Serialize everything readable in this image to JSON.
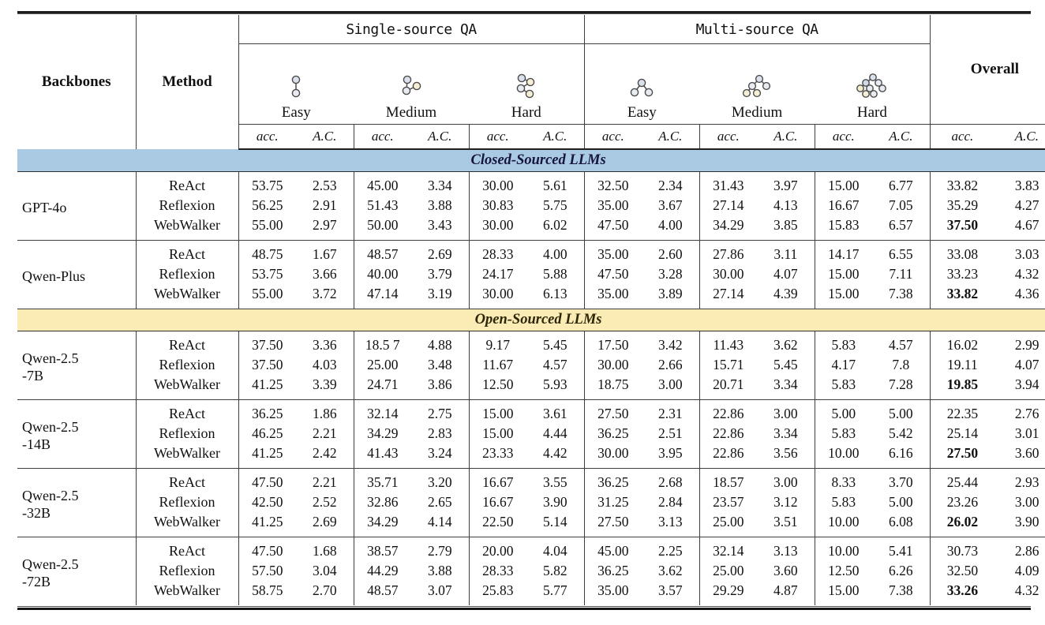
{
  "header": {
    "backbones_label": "Backbones",
    "method_label": "Method",
    "single_source_label": "Single-source QA",
    "multi_source_label": "Multi-source QA",
    "overall_label": "Overall",
    "difficulty_labels": [
      "Easy",
      "Medium",
      "Hard"
    ],
    "acc_label": "acc.",
    "ac_label": "A.C.",
    "icons": [
      "single-easy-chain-2-nodes-icon",
      "single-medium-chain-3-nodes-icon",
      "single-hard-chain-4-nodes-icon",
      "multi-easy-tree-3-nodes-icon",
      "multi-medium-tree-5-nodes-icon",
      "multi-hard-tree-8-nodes-icon"
    ]
  },
  "colors": {
    "closed_banner_bg": "#aac9e2",
    "open_banner_bg": "#faecb4",
    "closed_banner_text": "#15153d",
    "open_banner_text": "#2c2608",
    "rule_dark": "#1e1e1e",
    "rule_mid": "#3e3e3e",
    "node_fill_blue": "#dbe1ec",
    "node_fill_cream": "#f6efd5"
  },
  "sections": [
    {
      "title": "Closed-Sourced LLMs",
      "theme": "closed",
      "groups": [
        {
          "backbone_lines": [
            "GPT-4o"
          ],
          "rows": [
            {
              "method": "ReAct",
              "values": [
                "53.75",
                "2.53",
                "45.00",
                "3.34",
                "30.00",
                "5.61",
                "32.50",
                "2.34",
                "31.43",
                "3.97",
                "15.00",
                "6.77",
                "33.82",
                "3.83"
              ],
              "bold_indices": []
            },
            {
              "method": "Reflexion",
              "values": [
                "56.25",
                "2.91",
                "51.43",
                "3.88",
                "30.83",
                "5.75",
                "35.00",
                "3.67",
                "27.14",
                "4.13",
                "16.67",
                "7.05",
                "35.29",
                "4.27"
              ],
              "bold_indices": []
            },
            {
              "method": "WebWalker",
              "values": [
                "55.00",
                "2.97",
                "50.00",
                "3.43",
                "30.00",
                "6.02",
                "47.50",
                "4.00",
                "34.29",
                "3.85",
                "15.83",
                "6.57",
                "37.50",
                "4.67"
              ],
              "bold_indices": [
                12
              ]
            }
          ]
        },
        {
          "backbone_lines": [
            "Qwen-Plus"
          ],
          "rows": [
            {
              "method": "ReAct",
              "values": [
                "48.75",
                "1.67",
                "48.57",
                "2.69",
                "28.33",
                "4.00",
                "35.00",
                "2.60",
                "27.86",
                "3.11",
                "14.17",
                "6.55",
                "33.08",
                "3.03"
              ],
              "bold_indices": []
            },
            {
              "method": "Reflexion",
              "values": [
                "53.75",
                "3.66",
                "40.00",
                "3.79",
                "24.17",
                "5.88",
                "47.50",
                "3.28",
                "30.00",
                "4.07",
                "15.00",
                "7.11",
                "33.23",
                "4.32"
              ],
              "bold_indices": []
            },
            {
              "method": "WebWalker",
              "values": [
                "55.00",
                "3.72",
                "47.14",
                "3.19",
                "30.00",
                "6.13",
                "35.00",
                "3.89",
                "27.14",
                "4.39",
                "15.00",
                "7.38",
                "33.82",
                "4.36"
              ],
              "bold_indices": [
                12
              ]
            }
          ]
        }
      ]
    },
    {
      "title": "Open-Sourced LLMs",
      "theme": "open",
      "groups": [
        {
          "backbone_lines": [
            "Qwen-2.5",
            "-7B"
          ],
          "rows": [
            {
              "method": "ReAct",
              "values": [
                "37.50",
                "3.36",
                "18.5 7",
                "4.88",
                "9.17",
                "5.45",
                "17.50",
                "3.42",
                "11.43",
                "3.62",
                "5.83",
                "4.57",
                "16.02",
                "2.99"
              ],
              "bold_indices": []
            },
            {
              "method": "Reflexion",
              "values": [
                "37.50",
                "4.03",
                "25.00",
                "3.48",
                "11.67",
                "4.57",
                "30.00",
                "2.66",
                "15.71",
                "5.45",
                "4.17",
                "7.8",
                "19.11",
                "4.07"
              ],
              "bold_indices": []
            },
            {
              "method": "WebWalker",
              "values": [
                "41.25",
                "3.39",
                "24.71",
                "3.86",
                "12.50",
                "5.93",
                "18.75",
                "3.00",
                "20.71",
                "3.34",
                "5.83",
                "7.28",
                "19.85",
                "3.94"
              ],
              "bold_indices": [
                12
              ]
            }
          ]
        },
        {
          "backbone_lines": [
            "Qwen-2.5",
            "-14B"
          ],
          "rows": [
            {
              "method": "ReAct",
              "values": [
                "36.25",
                "1.86",
                "32.14",
                "2.75",
                "15.00",
                "3.61",
                "27.50",
                "2.31",
                "22.86",
                "3.00",
                "5.00",
                "5.00",
                "22.35",
                "2.76"
              ],
              "bold_indices": []
            },
            {
              "method": "Reflexion",
              "values": [
                "46.25",
                "2.21",
                "34.29",
                "2.83",
                "15.00",
                "4.44",
                "36.25",
                "2.51",
                "22.86",
                "3.34",
                "5.83",
                "5.42",
                "25.14",
                "3.01"
              ],
              "bold_indices": []
            },
            {
              "method": "WebWalker",
              "values": [
                "41.25",
                "2.42",
                "41.43",
                "3.24",
                "23.33",
                "4.42",
                "30.00",
                "3.95",
                "22.86",
                "3.56",
                "10.00",
                "6.16",
                "27.50",
                "3.60"
              ],
              "bold_indices": [
                12
              ]
            }
          ]
        },
        {
          "backbone_lines": [
            "Qwen-2.5",
            "-32B"
          ],
          "rows": [
            {
              "method": "ReAct",
              "values": [
                "47.50",
                "2.21",
                "35.71",
                "3.20",
                "16.67",
                "3.55",
                "36.25",
                "2.68",
                "18.57",
                "3.00",
                "8.33",
                "3.70",
                "25.44",
                "2.93"
              ],
              "bold_indices": []
            },
            {
              "method": "Reflexion",
              "values": [
                "42.50",
                "2.52",
                "32.86",
                "2.65",
                "16.67",
                "3.90",
                "31.25",
                "2.84",
                "23.57",
                "3.12",
                "5.83",
                "5.00",
                "23.26",
                "3.00"
              ],
              "bold_indices": []
            },
            {
              "method": "WebWalker",
              "values": [
                "41.25",
                "2.69",
                "34.29",
                "4.14",
                "22.50",
                "5.14",
                "27.50",
                "3.13",
                "25.00",
                "3.51",
                "10.00",
                "6.08",
                "26.02",
                "3.90"
              ],
              "bold_indices": [
                12
              ]
            }
          ]
        },
        {
          "backbone_lines": [
            "Qwen-2.5",
            "-72B"
          ],
          "rows": [
            {
              "method": "ReAct",
              "values": [
                "47.50",
                "1.68",
                "38.57",
                "2.79",
                "20.00",
                "4.04",
                "45.00",
                "2.25",
                "32.14",
                "3.13",
                "10.00",
                "5.41",
                "30.73",
                "2.86"
              ],
              "bold_indices": []
            },
            {
              "method": "Reflexion",
              "values": [
                "57.50",
                "3.04",
                "44.29",
                "3.88",
                "28.33",
                "5.82",
                "36.25",
                "3.62",
                "25.00",
                "3.60",
                "12.50",
                "6.26",
                "32.50",
                "4.09"
              ],
              "bold_indices": []
            },
            {
              "method": "WebWalker",
              "values": [
                "58.75",
                "2.70",
                "48.57",
                "3.07",
                "25.83",
                "5.77",
                "35.00",
                "3.57",
                "29.29",
                "4.87",
                "15.00",
                "7.38",
                "33.26",
                "4.32"
              ],
              "bold_indices": [
                12
              ]
            }
          ]
        }
      ]
    }
  ]
}
